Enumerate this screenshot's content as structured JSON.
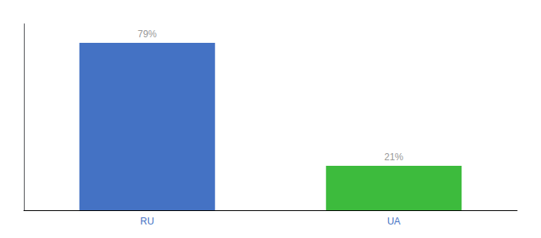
{
  "chart_data": {
    "type": "bar",
    "categories": [
      "RU",
      "UA"
    ],
    "values": [
      79,
      21
    ],
    "value_labels": [
      "79%",
      "21%"
    ],
    "colors": [
      "#4472c4",
      "#3dbb3d"
    ],
    "ylim": [
      0,
      88
    ],
    "grid": false,
    "data_labels": true,
    "tick_labels": "x"
  }
}
